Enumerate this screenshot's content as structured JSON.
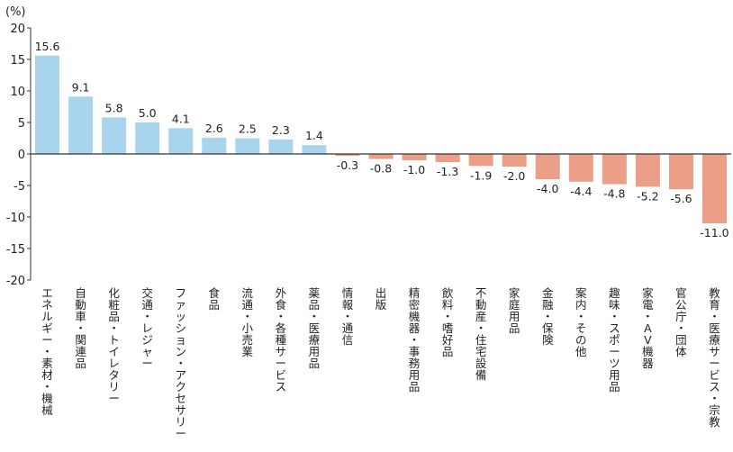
{
  "chart_data": {
    "type": "bar",
    "unit_label": "(%)",
    "ylim": [
      -20,
      20
    ],
    "yticks": [
      20,
      15,
      10,
      5,
      0,
      -5,
      -10,
      -15,
      -20
    ],
    "grid": false,
    "colors": {
      "positive": "#a9d4ed",
      "negative": "#eb9e88",
      "axis": "#333333"
    },
    "categories": [
      "エネルギー・素材・機械",
      "自動車・関連品",
      "化粧品・トイレタリー",
      "交通・レジャー",
      "ファッション・アクセサリー",
      "食品",
      "流通・小売業",
      "外食・各種サービス",
      "薬品・医療用品",
      "情報・通信",
      "出版",
      "精密機器・事務用品",
      "飲料・嗜好品",
      "不動産・住宅設備",
      "家庭用品",
      "金融・保険",
      "案内・その他",
      "趣味・スポーツ用品",
      "家電・AV機器",
      "官公庁・団体",
      "教育・医療サービス・宗教"
    ],
    "values": [
      15.6,
      9.1,
      5.8,
      5.0,
      4.1,
      2.6,
      2.5,
      2.3,
      1.4,
      -0.3,
      -0.8,
      -1.0,
      -1.3,
      -1.9,
      -2.0,
      -4.0,
      -4.4,
      -4.8,
      -5.2,
      -5.6,
      -11.0
    ],
    "value_labels": [
      "15.6",
      "9.1",
      "5.8",
      "5.0",
      "4.1",
      "2.6",
      "2.5",
      "2.3",
      "1.4",
      "-0.3",
      "-0.8",
      "-1.0",
      "-1.3",
      "-1.9",
      "-2.0",
      "-4.0",
      "-4.4",
      "-4.8",
      "-5.2",
      "-5.6",
      "-11.0"
    ]
  }
}
